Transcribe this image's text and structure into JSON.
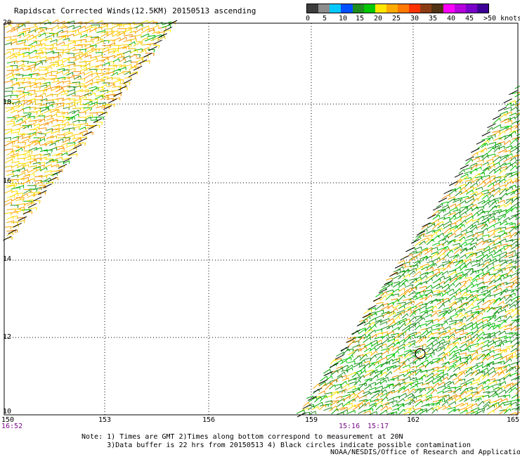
{
  "title": "Rapidscat Corrected Winds(12.5KM) 20150513 ascending",
  "legend": {
    "colors": [
      "#3c3c3c",
      "#8c8c8c",
      "#00c8ff",
      "#0050ff",
      "#1e8c1e",
      "#00c800",
      "#ffe600",
      "#ffaa00",
      "#ff7800",
      "#ff3200",
      "#8c3c14",
      "#503214",
      "#ff00ff",
      "#b400dc",
      "#7800c8",
      "#3c0096"
    ],
    "labels": [
      "0",
      "5",
      "10",
      "15",
      "20",
      "25",
      "30",
      "35",
      "40",
      "45",
      ">50 knots"
    ]
  },
  "axes": {
    "lat_labels": [
      "20",
      "18",
      "16",
      "14",
      "12",
      "10"
    ],
    "lon_labels": [
      "150",
      "153",
      "156",
      "159",
      "162",
      "165"
    ]
  },
  "time_labels": [
    "16:52",
    "15:16",
    "15:17"
  ],
  "notes": {
    "line1": "Note: 1) Times are GMT 2)Times along bottom correspond to measurement at 20N",
    "line2": "      3)Data buffer is 22 hrs from 20150513 4) Black circles indicate possible contamination"
  },
  "credit": "NOAA/NESDIS/Office of Research and Applications"
}
